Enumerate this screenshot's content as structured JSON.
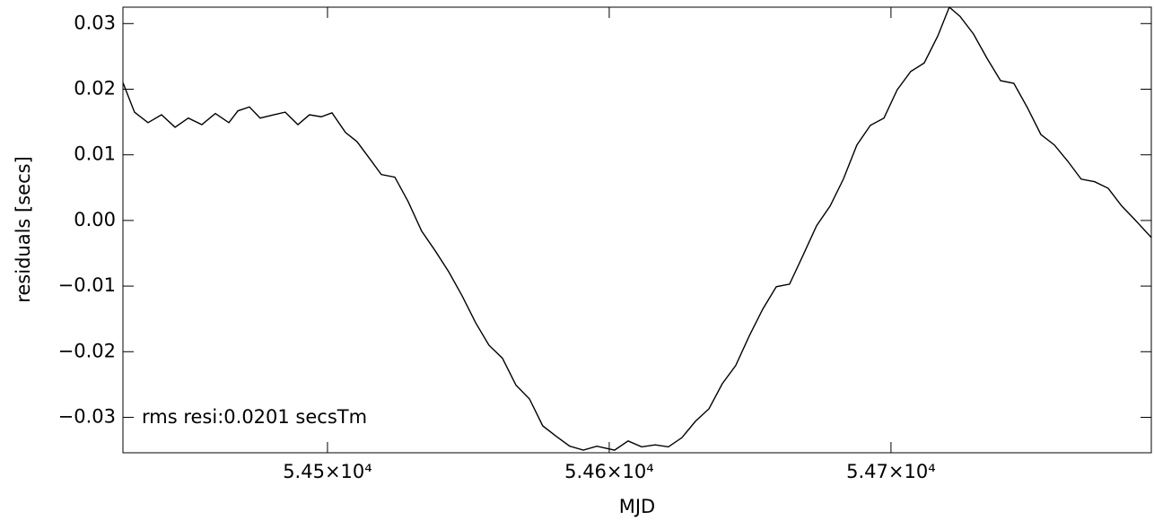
{
  "chart_data": {
    "type": "line",
    "xlabel": "MJD",
    "ylabel": "residuals [secs]",
    "annotation": "rms resi:0.0201 secsTm",
    "color": "#000000",
    "xlim": [
      54427.4,
      54792.4
    ],
    "ylim": [
      -0.0354,
      0.0325
    ],
    "xticks": [
      {
        "value": 54500,
        "label": "5.45×10⁴"
      },
      {
        "value": 54600,
        "label": "5.46×10⁴"
      },
      {
        "value": 54700,
        "label": "5.47×10⁴"
      }
    ],
    "yticks": [
      0.03,
      0.02,
      0.01,
      {
        "value": 0,
        "label": "0.00"
      },
      {
        "value": -0.01,
        "label": "−0.01"
      },
      {
        "value": -0.02,
        "label": "−0.02"
      },
      {
        "value": -0.03,
        "label": "−0.03"
      }
    ],
    "x": [
      54427.4,
      54431.5,
      54436.3,
      54441.1,
      54445.9,
      54450.6,
      54455.4,
      54460.2,
      54465.0,
      54468.2,
      54472.3,
      54476.1,
      54480.9,
      54485.0,
      54489.5,
      54493.6,
      54497.8,
      54501.6,
      54506.4,
      54510.5,
      54515.0,
      54519.1,
      54523.9,
      54528.6,
      54533.4,
      54538.2,
      54543.0,
      54547.8,
      54552.6,
      54557.3,
      54562.1,
      54566.9,
      54571.7,
      54576.4,
      54581.2,
      54586.0,
      54590.8,
      54595.6,
      54601.9,
      54606.7,
      54611.5,
      54616.3,
      54621.0,
      54625.8,
      54630.6,
      54635.4,
      54640.1,
      54644.9,
      54649.7,
      54654.5,
      54659.3,
      54664.0,
      54668.8,
      54673.6,
      54678.4,
      54683.1,
      54687.9,
      54692.7,
      54697.5,
      54702.2,
      54707.0,
      54711.8,
      54716.6,
      54720.7,
      54724.5,
      54729.3,
      54734.1,
      54738.9,
      54743.6,
      54748.4,
      54753.2,
      54758.0,
      54762.8,
      54767.5,
      54772.3,
      54777.1,
      54781.9,
      54786.6,
      54792.4
    ],
    "values": [
      0.021,
      0.0165,
      0.0149,
      0.0161,
      0.0142,
      0.0156,
      0.0146,
      0.0163,
      0.0149,
      0.0167,
      0.0173,
      0.0156,
      0.0161,
      0.0165,
      0.0146,
      0.0161,
      0.0158,
      0.0164,
      0.0134,
      0.012,
      0.0094,
      0.007,
      0.0066,
      0.0029,
      -0.0016,
      -0.0046,
      -0.0078,
      -0.0115,
      -0.0156,
      -0.019,
      -0.021,
      -0.0251,
      -0.0272,
      -0.0313,
      -0.0329,
      -0.0344,
      -0.035,
      -0.0344,
      -0.035,
      -0.0336,
      -0.0345,
      -0.0342,
      -0.0345,
      -0.0331,
      -0.0306,
      -0.0287,
      -0.0249,
      -0.0221,
      -0.0176,
      -0.0135,
      -0.0101,
      -0.0097,
      -0.0053,
      -0.0008,
      0.0022,
      0.0063,
      0.0115,
      0.0145,
      0.0156,
      0.0199,
      0.0227,
      0.024,
      0.0281,
      0.0325,
      0.0311,
      0.0284,
      0.0247,
      0.0213,
      0.0209,
      0.0172,
      0.0131,
      0.0115,
      0.009,
      0.0063,
      0.0059,
      0.0049,
      0.0022,
      0.0001,
      -0.0026
    ]
  }
}
